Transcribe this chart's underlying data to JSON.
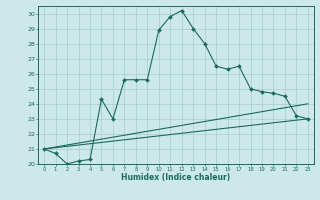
{
  "xlabel": "Humidex (Indice chaleur)",
  "ylabel": "",
  "bg_color": "#cce8e8",
  "grid_color": "#aacccc",
  "line_color": "#1a6b5a",
  "xlim": [
    -0.5,
    23.5
  ],
  "ylim": [
    20,
    30.5
  ],
  "yticks": [
    20,
    21,
    22,
    23,
    24,
    25,
    26,
    27,
    28,
    29,
    30
  ],
  "xticks": [
    0,
    1,
    2,
    3,
    4,
    5,
    6,
    7,
    8,
    9,
    10,
    11,
    12,
    13,
    14,
    15,
    16,
    17,
    18,
    19,
    20,
    21,
    22,
    23
  ],
  "line1_x": [
    0,
    1,
    2,
    3,
    4,
    5,
    6,
    7,
    8,
    9,
    10,
    11,
    12,
    13,
    14,
    15,
    16,
    17,
    18,
    19,
    20,
    21,
    22,
    23
  ],
  "line1_y": [
    21.0,
    20.7,
    20.0,
    20.2,
    20.3,
    24.3,
    23.0,
    25.6,
    25.6,
    25.6,
    28.9,
    29.8,
    30.2,
    29.0,
    28.0,
    26.5,
    26.3,
    26.5,
    25.0,
    24.8,
    24.7,
    24.5,
    23.2,
    23.0
  ],
  "line2_x": [
    0,
    23
  ],
  "line2_y": [
    21.0,
    24.0
  ],
  "line3_x": [
    0,
    23
  ],
  "line3_y": [
    21.0,
    23.0
  ]
}
